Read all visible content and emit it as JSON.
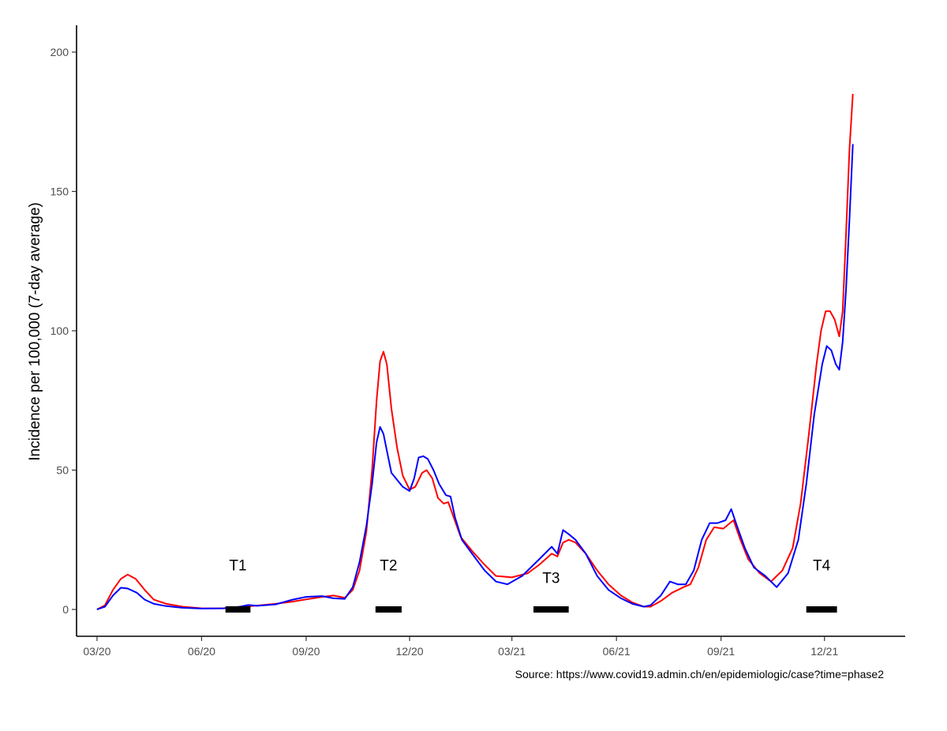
{
  "chart_data": {
    "type": "line",
    "title": "",
    "xlabel": "",
    "ylabel": "Incidence per 100,000 (7-day average)",
    "ylim": [
      0,
      210
    ],
    "xlim": [
      "2020-02-12",
      "2022-02-10"
    ],
    "x_ticks": [
      {
        "date": "2020-03-01",
        "label": "03/20"
      },
      {
        "date": "2020-06-01",
        "label": "06/20"
      },
      {
        "date": "2020-09-01",
        "label": "09/20"
      },
      {
        "date": "2020-12-01",
        "label": "12/20"
      },
      {
        "date": "2021-03-01",
        "label": "03/21"
      },
      {
        "date": "2021-06-01",
        "label": "06/21"
      },
      {
        "date": "2021-09-01",
        "label": "09/21"
      },
      {
        "date": "2021-12-01",
        "label": "12/21"
      }
    ],
    "y_ticks": [
      {
        "value": 0,
        "label": "0"
      },
      {
        "value": 50,
        "label": "50"
      },
      {
        "value": 100,
        "label": "100"
      },
      {
        "value": 150,
        "label": "150"
      },
      {
        "value": 200,
        "label": "200"
      }
    ],
    "grid": false,
    "series": [
      {
        "color": "#ff0000",
        "points": [
          [
            "2020-03-01",
            0
          ],
          [
            "2020-03-08",
            1.5
          ],
          [
            "2020-03-15",
            7
          ],
          [
            "2020-03-22",
            11
          ],
          [
            "2020-03-28",
            12.5
          ],
          [
            "2020-04-04",
            11
          ],
          [
            "2020-04-12",
            7
          ],
          [
            "2020-04-20",
            3.5
          ],
          [
            "2020-05-01",
            2
          ],
          [
            "2020-05-15",
            1
          ],
          [
            "2020-06-01",
            0.4
          ],
          [
            "2020-06-20",
            0.4
          ],
          [
            "2020-07-05",
            0.9
          ],
          [
            "2020-07-20",
            1.4
          ],
          [
            "2020-08-05",
            2
          ],
          [
            "2020-08-20",
            2.8
          ],
          [
            "2020-09-01",
            3.6
          ],
          [
            "2020-09-15",
            4.5
          ],
          [
            "2020-09-25",
            5
          ],
          [
            "2020-10-05",
            4.2
          ],
          [
            "2020-10-12",
            7
          ],
          [
            "2020-10-18",
            14
          ],
          [
            "2020-10-24",
            28
          ],
          [
            "2020-10-29",
            50
          ],
          [
            "2020-11-02",
            75
          ],
          [
            "2020-11-05",
            89
          ],
          [
            "2020-11-08",
            92.5
          ],
          [
            "2020-11-11",
            88
          ],
          [
            "2020-11-15",
            72
          ],
          [
            "2020-11-20",
            58
          ],
          [
            "2020-11-25",
            48
          ],
          [
            "2020-12-01",
            43
          ],
          [
            "2020-12-06",
            44
          ],
          [
            "2020-12-12",
            49
          ],
          [
            "2020-12-16",
            50
          ],
          [
            "2020-12-21",
            47
          ],
          [
            "2020-12-26",
            40
          ],
          [
            "2020-12-31",
            38
          ],
          [
            "2021-01-04",
            38.5
          ],
          [
            "2021-01-08",
            34
          ],
          [
            "2021-01-15",
            26
          ],
          [
            "2021-01-25",
            21
          ],
          [
            "2021-02-05",
            16
          ],
          [
            "2021-02-15",
            12
          ],
          [
            "2021-03-01",
            11.5
          ],
          [
            "2021-03-15",
            13
          ],
          [
            "2021-03-25",
            16
          ],
          [
            "2021-04-05",
            20
          ],
          [
            "2021-04-10",
            19
          ],
          [
            "2021-04-15",
            24
          ],
          [
            "2021-04-20",
            25
          ],
          [
            "2021-04-26",
            24
          ],
          [
            "2021-05-05",
            20
          ],
          [
            "2021-05-15",
            14
          ],
          [
            "2021-05-25",
            9
          ],
          [
            "2021-06-05",
            5
          ],
          [
            "2021-06-15",
            2.5
          ],
          [
            "2021-06-25",
            1
          ],
          [
            "2021-07-01",
            1
          ],
          [
            "2021-07-10",
            3
          ],
          [
            "2021-07-20",
            6
          ],
          [
            "2021-07-30",
            8
          ],
          [
            "2021-08-05",
            9
          ],
          [
            "2021-08-12",
            15
          ],
          [
            "2021-08-19",
            25
          ],
          [
            "2021-08-26",
            29.5
          ],
          [
            "2021-09-03",
            29
          ],
          [
            "2021-09-12",
            32
          ],
          [
            "2021-09-18",
            25
          ],
          [
            "2021-09-25",
            18
          ],
          [
            "2021-10-05",
            13
          ],
          [
            "2021-10-15",
            10
          ],
          [
            "2021-10-25",
            14
          ],
          [
            "2021-11-03",
            22
          ],
          [
            "2021-11-10",
            38
          ],
          [
            "2021-11-17",
            62
          ],
          [
            "2021-11-24",
            88
          ],
          [
            "2021-11-28",
            100
          ],
          [
            "2021-12-02",
            107
          ],
          [
            "2021-12-06",
            107
          ],
          [
            "2021-12-10",
            104
          ],
          [
            "2021-12-14",
            98
          ],
          [
            "2021-12-17",
            107
          ],
          [
            "2021-12-20",
            135
          ],
          [
            "2021-12-23",
            165
          ],
          [
            "2021-12-26",
            185
          ]
        ]
      },
      {
        "color": "#0000ff",
        "points": [
          [
            "2020-03-01",
            0
          ],
          [
            "2020-03-08",
            1
          ],
          [
            "2020-03-15",
            5
          ],
          [
            "2020-03-22",
            7.8
          ],
          [
            "2020-03-28",
            7.5
          ],
          [
            "2020-04-05",
            6
          ],
          [
            "2020-04-12",
            3.5
          ],
          [
            "2020-04-20",
            2
          ],
          [
            "2020-05-01",
            1.2
          ],
          [
            "2020-05-15",
            0.6
          ],
          [
            "2020-06-01",
            0.3
          ],
          [
            "2020-06-20",
            0.4
          ],
          [
            "2020-07-05",
            1
          ],
          [
            "2020-07-12",
            1.6
          ],
          [
            "2020-07-20",
            1.3
          ],
          [
            "2020-08-05",
            1.8
          ],
          [
            "2020-08-20",
            3.5
          ],
          [
            "2020-09-01",
            4.5
          ],
          [
            "2020-09-15",
            4.8
          ],
          [
            "2020-09-25",
            4
          ],
          [
            "2020-10-05",
            3.8
          ],
          [
            "2020-10-12",
            8
          ],
          [
            "2020-10-18",
            17
          ],
          [
            "2020-10-24",
            30
          ],
          [
            "2020-10-29",
            45
          ],
          [
            "2020-11-02",
            60
          ],
          [
            "2020-11-05",
            65.5
          ],
          [
            "2020-11-08",
            63
          ],
          [
            "2020-11-11",
            57
          ],
          [
            "2020-11-15",
            49
          ],
          [
            "2020-11-20",
            46.5
          ],
          [
            "2020-11-25",
            44
          ],
          [
            "2020-12-01",
            42.5
          ],
          [
            "2020-12-05",
            47
          ],
          [
            "2020-12-09",
            54.5
          ],
          [
            "2020-12-13",
            55
          ],
          [
            "2020-12-17",
            54
          ],
          [
            "2020-12-22",
            50
          ],
          [
            "2020-12-27",
            45
          ],
          [
            "2021-01-02",
            41
          ],
          [
            "2021-01-06",
            40.5
          ],
          [
            "2021-01-10",
            33
          ],
          [
            "2021-01-16",
            25
          ],
          [
            "2021-01-25",
            20
          ],
          [
            "2021-02-05",
            14
          ],
          [
            "2021-02-15",
            10
          ],
          [
            "2021-02-25",
            9
          ],
          [
            "2021-03-10",
            12
          ],
          [
            "2021-03-25",
            18
          ],
          [
            "2021-04-05",
            22.5
          ],
          [
            "2021-04-10",
            20
          ],
          [
            "2021-04-15",
            28.5
          ],
          [
            "2021-04-20",
            27
          ],
          [
            "2021-04-26",
            25
          ],
          [
            "2021-05-05",
            20
          ],
          [
            "2021-05-15",
            12
          ],
          [
            "2021-05-25",
            7
          ],
          [
            "2021-06-05",
            4
          ],
          [
            "2021-06-15",
            2
          ],
          [
            "2021-06-25",
            1
          ],
          [
            "2021-07-01",
            1.5
          ],
          [
            "2021-07-10",
            5
          ],
          [
            "2021-07-18",
            10
          ],
          [
            "2021-07-25",
            9
          ],
          [
            "2021-08-01",
            9
          ],
          [
            "2021-08-08",
            14
          ],
          [
            "2021-08-15",
            25
          ],
          [
            "2021-08-22",
            31
          ],
          [
            "2021-08-29",
            31
          ],
          [
            "2021-09-05",
            32
          ],
          [
            "2021-09-10",
            36
          ],
          [
            "2021-09-15",
            30
          ],
          [
            "2021-09-22",
            22
          ],
          [
            "2021-09-30",
            15
          ],
          [
            "2021-10-10",
            12
          ],
          [
            "2021-10-20",
            8
          ],
          [
            "2021-10-30",
            13
          ],
          [
            "2021-11-08",
            25
          ],
          [
            "2021-11-15",
            45
          ],
          [
            "2021-11-22",
            70
          ],
          [
            "2021-11-29",
            88
          ],
          [
            "2021-12-03",
            94.5
          ],
          [
            "2021-12-07",
            93
          ],
          [
            "2021-12-11",
            88
          ],
          [
            "2021-12-14",
            86
          ],
          [
            "2021-12-17",
            96
          ],
          [
            "2021-12-20",
            115
          ],
          [
            "2021-12-23",
            140
          ],
          [
            "2021-12-26",
            167
          ]
        ]
      }
    ],
    "periods": [
      {
        "label": "T1",
        "start": "2020-06-22",
        "end": "2020-07-14",
        "label_y": 14
      },
      {
        "label": "T2",
        "start": "2020-11-01",
        "end": "2020-11-24",
        "label_y": 14
      },
      {
        "label": "T3",
        "start": "2021-03-20",
        "end": "2021-04-20",
        "label_y": 9.5
      },
      {
        "label": "T4",
        "start": "2021-11-15",
        "end": "2021-12-12",
        "label_y": 14
      }
    ]
  },
  "source_note": "Source: https://www.covid19.admin.ch/en/epidemiologic/case?time=phase2"
}
